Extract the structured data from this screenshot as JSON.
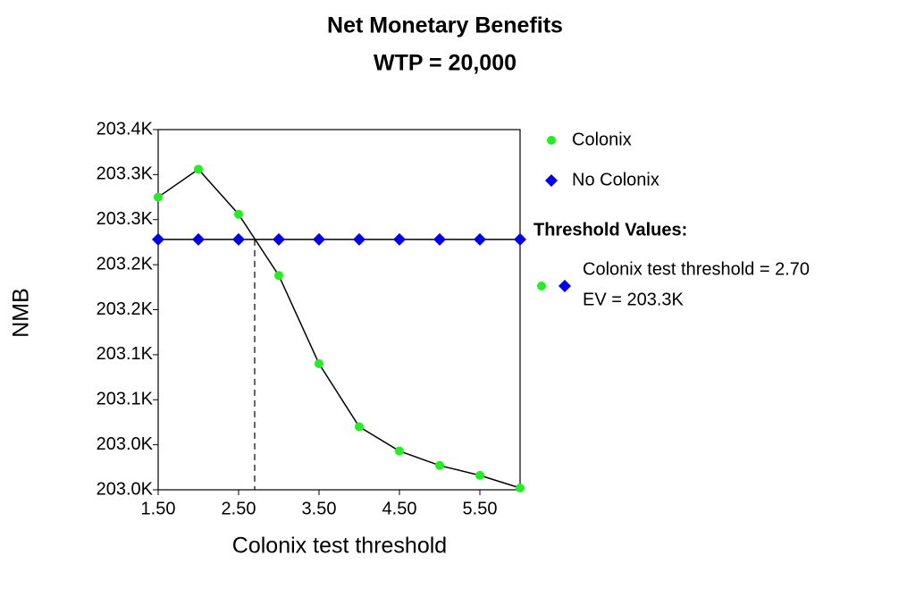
{
  "chart_data": {
    "type": "line",
    "title": "Net Monetary Benefits",
    "subtitle": "WTP = 20,000",
    "x_label": "Colonix test threshold",
    "y_label": "NMB",
    "x": [
      1.5,
      2.0,
      2.5,
      3.0,
      3.5,
      4.0,
      4.5,
      5.0,
      5.5,
      6.0
    ],
    "series": [
      {
        "name": "Colonix",
        "color": "#22ee22",
        "marker": "circle",
        "values": [
          203325,
          203356,
          203306,
          203238,
          203140,
          203070,
          203043,
          203027,
          203016,
          203002
        ]
      },
      {
        "name": "No Colonix",
        "color": "#0000ee",
        "marker": "diamond",
        "values": [
          203278,
          203278,
          203278,
          203278,
          203278,
          203278,
          203278,
          203278,
          203278,
          203278
        ]
      }
    ],
    "line_color": "#000000",
    "xlim": [
      1.5,
      6.0
    ],
    "xticks": [
      {
        "value": 1.5,
        "label": "1.50"
      },
      {
        "value": 2.5,
        "label": "2.50"
      },
      {
        "value": 3.5,
        "label": "3.50"
      },
      {
        "value": 4.5,
        "label": "4.50"
      },
      {
        "value": 5.5,
        "label": "5.50"
      }
    ],
    "ylim": [
      203000,
      203400
    ],
    "yticks": [
      {
        "value": 203000,
        "label": "203.0K"
      },
      {
        "value": 203050,
        "label": "203.0K"
      },
      {
        "value": 203100,
        "label": "203.1K"
      },
      {
        "value": 203150,
        "label": "203.1K"
      },
      {
        "value": 203200,
        "label": "203.2K"
      },
      {
        "value": 203250,
        "label": "203.2K"
      },
      {
        "value": 203300,
        "label": "203.3K"
      },
      {
        "value": 203350,
        "label": "203.3K"
      },
      {
        "value": 203400,
        "label": "203.4K"
      }
    ],
    "grid": false,
    "threshold": {
      "title": "Threshold Values:",
      "x": 2.7,
      "label": "Colonix test threshold = 2.70",
      "ev": {
        "value": 203278,
        "label": "EV = 203.3K"
      }
    }
  }
}
